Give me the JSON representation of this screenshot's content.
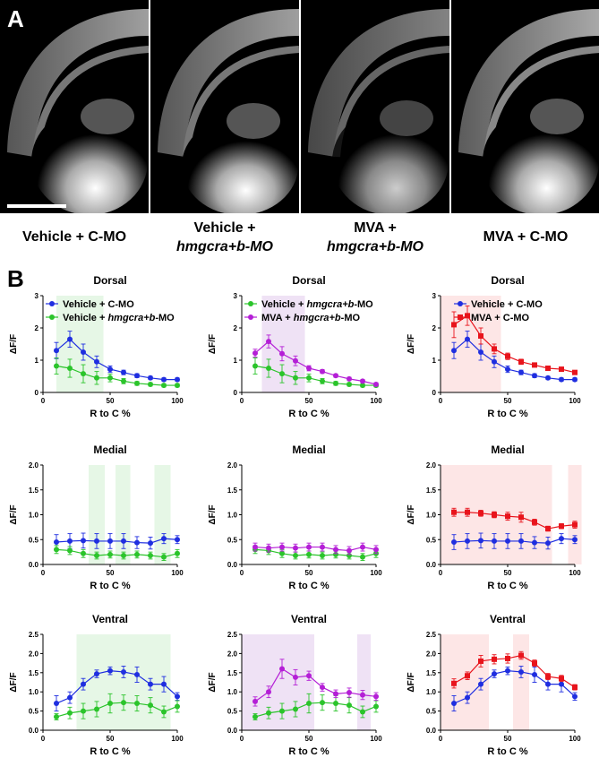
{
  "panel_a": {
    "letter": "A",
    "conditions": [
      {
        "line1": "Vehicle + C-MO",
        "line2": ""
      },
      {
        "line1": "Vehicle +",
        "line2": "hmgcra+b-MO"
      },
      {
        "line1": "MVA +",
        "line2": "hmgcra+b-MO"
      },
      {
        "line1": "MVA + C-MO",
        "line2": ""
      }
    ]
  },
  "panel_b": {
    "letter": "B"
  },
  "colors": {
    "vehicle_cmo": "#1f2ee0",
    "vehicle_hmg": "#2bc42b",
    "mva_hmg": "#b41fd6",
    "mva_cmo": "#e8141c",
    "shade_green": "#e6f7e6",
    "shade_purple": "#efe2f5",
    "shade_red": "#fde6e6"
  },
  "chart_data": [
    {
      "type": "line",
      "title": "Dorsal",
      "xlabel": "R to C %",
      "ylabel": "ΔF/F",
      "xlim": [
        0,
        100
      ],
      "ylim": [
        0,
        3
      ],
      "yticks": [
        0,
        1,
        2,
        3
      ],
      "shaded": [
        [
          10,
          45
        ]
      ],
      "shade": "green",
      "legend": [
        "Vehicle + C-MO",
        "Vehicle + hmgcra+b-MO"
      ],
      "x": [
        10,
        20,
        30,
        40,
        50,
        60,
        70,
        80,
        90,
        100
      ],
      "series": [
        {
          "name": "Vehicle + C-MO",
          "color": "blue",
          "marker": "circle",
          "values": [
            1.3,
            1.65,
            1.25,
            0.95,
            0.72,
            0.62,
            0.52,
            0.45,
            0.4,
            0.4
          ],
          "err": [
            0.25,
            0.25,
            0.25,
            0.18,
            0.1,
            0.07,
            0.06,
            0.05,
            0.05,
            0.05
          ]
        },
        {
          "name": "Vehicle + hmgcra+b-MO",
          "color": "green",
          "marker": "circle",
          "values": [
            0.82,
            0.75,
            0.58,
            0.45,
            0.45,
            0.35,
            0.28,
            0.25,
            0.22,
            0.22
          ],
          "err": [
            0.25,
            0.28,
            0.28,
            0.2,
            0.12,
            0.08,
            0.06,
            0.05,
            0.05,
            0.05
          ]
        }
      ]
    },
    {
      "type": "line",
      "title": "Dorsal",
      "xlabel": "R to C %",
      "ylabel": "ΔF/F",
      "xlim": [
        0,
        100
      ],
      "ylim": [
        0,
        3
      ],
      "yticks": [
        0,
        1,
        2,
        3
      ],
      "shaded": [
        [
          15,
          47
        ]
      ],
      "shade": "purple",
      "legend": [
        "Vehicle + hmgcra+b-MO",
        "MVA + hmgcra+b-MO"
      ],
      "x": [
        10,
        20,
        30,
        40,
        50,
        60,
        70,
        80,
        90,
        100
      ],
      "series": [
        {
          "name": "Vehicle + hmgcra+b-MO",
          "color": "green",
          "marker": "circle",
          "values": [
            0.82,
            0.75,
            0.58,
            0.45,
            0.45,
            0.35,
            0.28,
            0.25,
            0.22,
            0.22
          ],
          "err": [
            0.25,
            0.28,
            0.28,
            0.2,
            0.12,
            0.08,
            0.06,
            0.05,
            0.05,
            0.05
          ]
        },
        {
          "name": "MVA + hmgcra+b-MO",
          "color": "purple",
          "marker": "circle",
          "values": [
            1.22,
            1.58,
            1.2,
            0.98,
            0.75,
            0.65,
            0.52,
            0.42,
            0.35,
            0.25
          ],
          "err": [
            0.12,
            0.2,
            0.22,
            0.15,
            0.08,
            0.06,
            0.05,
            0.05,
            0.05,
            0.05
          ]
        }
      ]
    },
    {
      "type": "line",
      "title": "Dorsal",
      "xlabel": "R to C %",
      "ylabel": "ΔF/F",
      "xlim": [
        0,
        100
      ],
      "ylim": [
        0,
        3
      ],
      "yticks": [
        0,
        1,
        2,
        3
      ],
      "shaded": [
        [
          0,
          45
        ]
      ],
      "shade": "red",
      "legend": [
        "Vehicle + C-MO",
        "MVA + C-MO"
      ],
      "x": [
        10,
        20,
        30,
        40,
        50,
        60,
        70,
        80,
        90,
        100
      ],
      "series": [
        {
          "name": "Vehicle + C-MO",
          "color": "blue",
          "marker": "circle",
          "values": [
            1.3,
            1.65,
            1.25,
            0.95,
            0.72,
            0.62,
            0.52,
            0.45,
            0.4,
            0.4
          ],
          "err": [
            0.25,
            0.25,
            0.25,
            0.18,
            0.1,
            0.07,
            0.06,
            0.05,
            0.05,
            0.05
          ]
        },
        {
          "name": "MVA + C-MO",
          "color": "red",
          "marker": "square",
          "values": [
            2.1,
            2.38,
            1.75,
            1.35,
            1.12,
            0.95,
            0.85,
            0.75,
            0.72,
            0.62
          ],
          "err": [
            0.4,
            0.3,
            0.25,
            0.15,
            0.1,
            0.08,
            0.06,
            0.05,
            0.05,
            0.05
          ]
        }
      ]
    },
    {
      "type": "line",
      "title": "Medial",
      "xlabel": "R to C %",
      "ylabel": "ΔF/F",
      "xlim": [
        0,
        100
      ],
      "ylim": [
        0,
        2
      ],
      "yticks": [
        0,
        0.5,
        1,
        1.5,
        2
      ],
      "shaded": [
        [
          34,
          46
        ],
        [
          54,
          65
        ],
        [
          83,
          95
        ]
      ],
      "shade": "green",
      "legend": [],
      "x": [
        10,
        20,
        30,
        40,
        50,
        60,
        70,
        80,
        90,
        100
      ],
      "series": [
        {
          "name": "Vehicle + C-MO",
          "color": "blue",
          "marker": "circle",
          "values": [
            0.45,
            0.47,
            0.48,
            0.47,
            0.47,
            0.47,
            0.44,
            0.43,
            0.52,
            0.5
          ],
          "err": [
            0.15,
            0.15,
            0.15,
            0.15,
            0.15,
            0.15,
            0.12,
            0.12,
            0.1,
            0.08
          ]
        },
        {
          "name": "Vehicle + hmgcra+b-MO",
          "color": "green",
          "marker": "circle",
          "values": [
            0.3,
            0.28,
            0.22,
            0.18,
            0.2,
            0.18,
            0.2,
            0.18,
            0.15,
            0.22
          ],
          "err": [
            0.08,
            0.08,
            0.08,
            0.07,
            0.07,
            0.07,
            0.07,
            0.07,
            0.07,
            0.08
          ]
        }
      ]
    },
    {
      "type": "line",
      "title": "Medial",
      "xlabel": "R to C %",
      "ylabel": "ΔF/F",
      "xlim": [
        0,
        100
      ],
      "ylim": [
        0,
        2
      ],
      "yticks": [
        0,
        0.5,
        1,
        1.5,
        2
      ],
      "shaded": [],
      "shade": "purple",
      "legend": [],
      "x": [
        10,
        20,
        30,
        40,
        50,
        60,
        70,
        80,
        90,
        100
      ],
      "series": [
        {
          "name": "Vehicle + hmgcra+b-MO",
          "color": "green",
          "marker": "circle",
          "values": [
            0.3,
            0.28,
            0.22,
            0.18,
            0.2,
            0.18,
            0.2,
            0.18,
            0.15,
            0.22
          ],
          "err": [
            0.08,
            0.08,
            0.08,
            0.07,
            0.07,
            0.07,
            0.07,
            0.07,
            0.07,
            0.08
          ]
        },
        {
          "name": "MVA + hmgcra+b-MO",
          "color": "purple",
          "marker": "circle",
          "values": [
            0.35,
            0.33,
            0.35,
            0.33,
            0.35,
            0.35,
            0.3,
            0.28,
            0.35,
            0.3
          ],
          "err": [
            0.08,
            0.08,
            0.08,
            0.08,
            0.08,
            0.08,
            0.08,
            0.08,
            0.08,
            0.08
          ]
        }
      ]
    },
    {
      "type": "line",
      "title": "Medial",
      "xlabel": "R to C %",
      "ylabel": "ΔF/F",
      "xlim": [
        0,
        100
      ],
      "ylim": [
        0,
        2
      ],
      "yticks": [
        0,
        0.5,
        1,
        1.5,
        2
      ],
      "shaded": [
        [
          0,
          83
        ],
        [
          95,
          105
        ]
      ],
      "shade": "red",
      "legend": [],
      "x": [
        10,
        20,
        30,
        40,
        50,
        60,
        70,
        80,
        90,
        100
      ],
      "series": [
        {
          "name": "Vehicle + C-MO",
          "color": "blue",
          "marker": "circle",
          "values": [
            0.45,
            0.47,
            0.48,
            0.47,
            0.47,
            0.47,
            0.44,
            0.43,
            0.52,
            0.5
          ],
          "err": [
            0.15,
            0.15,
            0.15,
            0.15,
            0.15,
            0.15,
            0.12,
            0.12,
            0.1,
            0.08
          ]
        },
        {
          "name": "MVA + C-MO",
          "color": "red",
          "marker": "square",
          "values": [
            1.05,
            1.05,
            1.03,
            1.0,
            0.97,
            0.95,
            0.85,
            0.72,
            0.77,
            0.8
          ],
          "err": [
            0.08,
            0.08,
            0.06,
            0.06,
            0.08,
            0.1,
            0.06,
            0.05,
            0.05,
            0.07
          ]
        }
      ]
    },
    {
      "type": "line",
      "title": "Ventral",
      "xlabel": "R to C %",
      "ylabel": "ΔF/F",
      "xlim": [
        0,
        100
      ],
      "ylim": [
        0,
        2.5
      ],
      "yticks": [
        0,
        0.5,
        1,
        1.5,
        2,
        2.5
      ],
      "shaded": [
        [
          25,
          95
        ]
      ],
      "shade": "green",
      "legend": [],
      "x": [
        10,
        20,
        30,
        40,
        50,
        60,
        70,
        80,
        90,
        100
      ],
      "series": [
        {
          "name": "Vehicle + C-MO",
          "color": "blue",
          "marker": "circle",
          "values": [
            0.7,
            0.85,
            1.2,
            1.47,
            1.55,
            1.52,
            1.45,
            1.2,
            1.2,
            0.88
          ],
          "err": [
            0.2,
            0.15,
            0.15,
            0.1,
            0.1,
            0.15,
            0.2,
            0.15,
            0.2,
            0.1
          ]
        },
        {
          "name": "Vehicle + hmgcra+b-MO",
          "color": "green",
          "marker": "circle",
          "values": [
            0.35,
            0.45,
            0.5,
            0.55,
            0.7,
            0.72,
            0.7,
            0.65,
            0.48,
            0.62
          ],
          "err": [
            0.08,
            0.15,
            0.2,
            0.2,
            0.25,
            0.2,
            0.2,
            0.2,
            0.15,
            0.15
          ]
        }
      ]
    },
    {
      "type": "line",
      "title": "Ventral",
      "xlabel": "R to C %",
      "ylabel": "ΔF/F",
      "xlim": [
        0,
        100
      ],
      "ylim": [
        0,
        2.5
      ],
      "yticks": [
        0,
        0.5,
        1,
        1.5,
        2,
        2.5
      ],
      "shaded": [
        [
          0,
          54
        ],
        [
          86,
          96
        ]
      ],
      "shade": "purple",
      "legend": [],
      "x": [
        10,
        20,
        30,
        40,
        50,
        60,
        70,
        80,
        90,
        100
      ],
      "series": [
        {
          "name": "Vehicle + hmgcra+b-MO",
          "color": "green",
          "marker": "circle",
          "values": [
            0.35,
            0.45,
            0.5,
            0.55,
            0.7,
            0.72,
            0.7,
            0.65,
            0.48,
            0.62
          ],
          "err": [
            0.08,
            0.15,
            0.2,
            0.2,
            0.25,
            0.2,
            0.2,
            0.2,
            0.15,
            0.15
          ]
        },
        {
          "name": "MVA + hmgcra+b-MO",
          "color": "purple",
          "marker": "circle",
          "values": [
            0.75,
            1.0,
            1.6,
            1.38,
            1.42,
            1.12,
            0.95,
            0.98,
            0.92,
            0.88
          ],
          "err": [
            0.12,
            0.15,
            0.25,
            0.2,
            0.12,
            0.1,
            0.1,
            0.12,
            0.12,
            0.1
          ]
        }
      ]
    },
    {
      "type": "line",
      "title": "Ventral",
      "xlabel": "R to C %",
      "ylabel": "ΔF/F",
      "xlim": [
        0,
        100
      ],
      "ylim": [
        0,
        2.5
      ],
      "yticks": [
        0,
        0.5,
        1,
        1.5,
        2,
        2.5
      ],
      "shaded": [
        [
          0,
          36
        ],
        [
          54,
          66
        ]
      ],
      "shade": "red",
      "legend": [],
      "x": [
        10,
        20,
        30,
        40,
        50,
        60,
        70,
        80,
        90,
        100
      ],
      "series": [
        {
          "name": "Vehicle + C-MO",
          "color": "blue",
          "marker": "circle",
          "values": [
            0.7,
            0.85,
            1.2,
            1.47,
            1.55,
            1.52,
            1.45,
            1.2,
            1.2,
            0.88
          ],
          "err": [
            0.2,
            0.15,
            0.15,
            0.1,
            0.1,
            0.15,
            0.2,
            0.15,
            0.2,
            0.1
          ]
        },
        {
          "name": "MVA + C-MO",
          "color": "red",
          "marker": "square",
          "values": [
            1.22,
            1.42,
            1.8,
            1.85,
            1.87,
            1.95,
            1.75,
            1.4,
            1.35,
            1.12
          ],
          "err": [
            0.12,
            0.1,
            0.15,
            0.12,
            0.12,
            0.1,
            0.08,
            0.08,
            0.08,
            0.07
          ]
        }
      ]
    }
  ]
}
